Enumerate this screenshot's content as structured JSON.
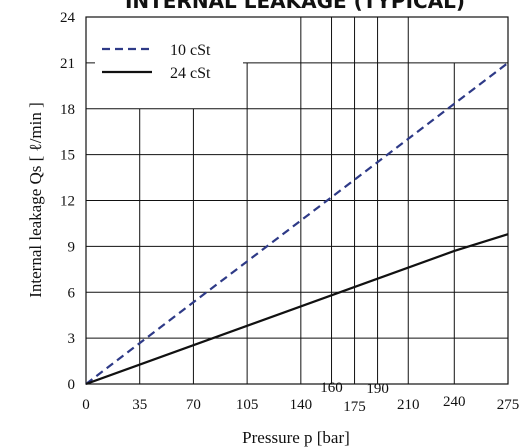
{
  "chart_data": {
    "type": "line",
    "title": "INTERNAL LEAKAGE (TYPICAL)",
    "xlabel": "Pressure  p  [bar]",
    "ylabel": "Internal  leakage  Qs  [  ℓ/min  ]",
    "xlim": [
      0,
      275
    ],
    "ylim": [
      0,
      24
    ],
    "x_ticks": [
      0,
      35,
      70,
      105,
      140,
      160,
      175,
      190,
      210,
      240,
      275
    ],
    "y_ticks": [
      0,
      3,
      6,
      9,
      12,
      15,
      18,
      21,
      24
    ],
    "grid": true,
    "legend_position": "top-left",
    "series": [
      {
        "name": "10  cSt",
        "style": "dashed",
        "color": "#2e3a87",
        "x": [
          0,
          275
        ],
        "y": [
          0,
          21
        ]
      },
      {
        "name": "24  cSt",
        "style": "solid",
        "color": "#111111",
        "x": [
          0,
          240,
          275
        ],
        "y": [
          0,
          8.7,
          9.8
        ]
      }
    ]
  }
}
